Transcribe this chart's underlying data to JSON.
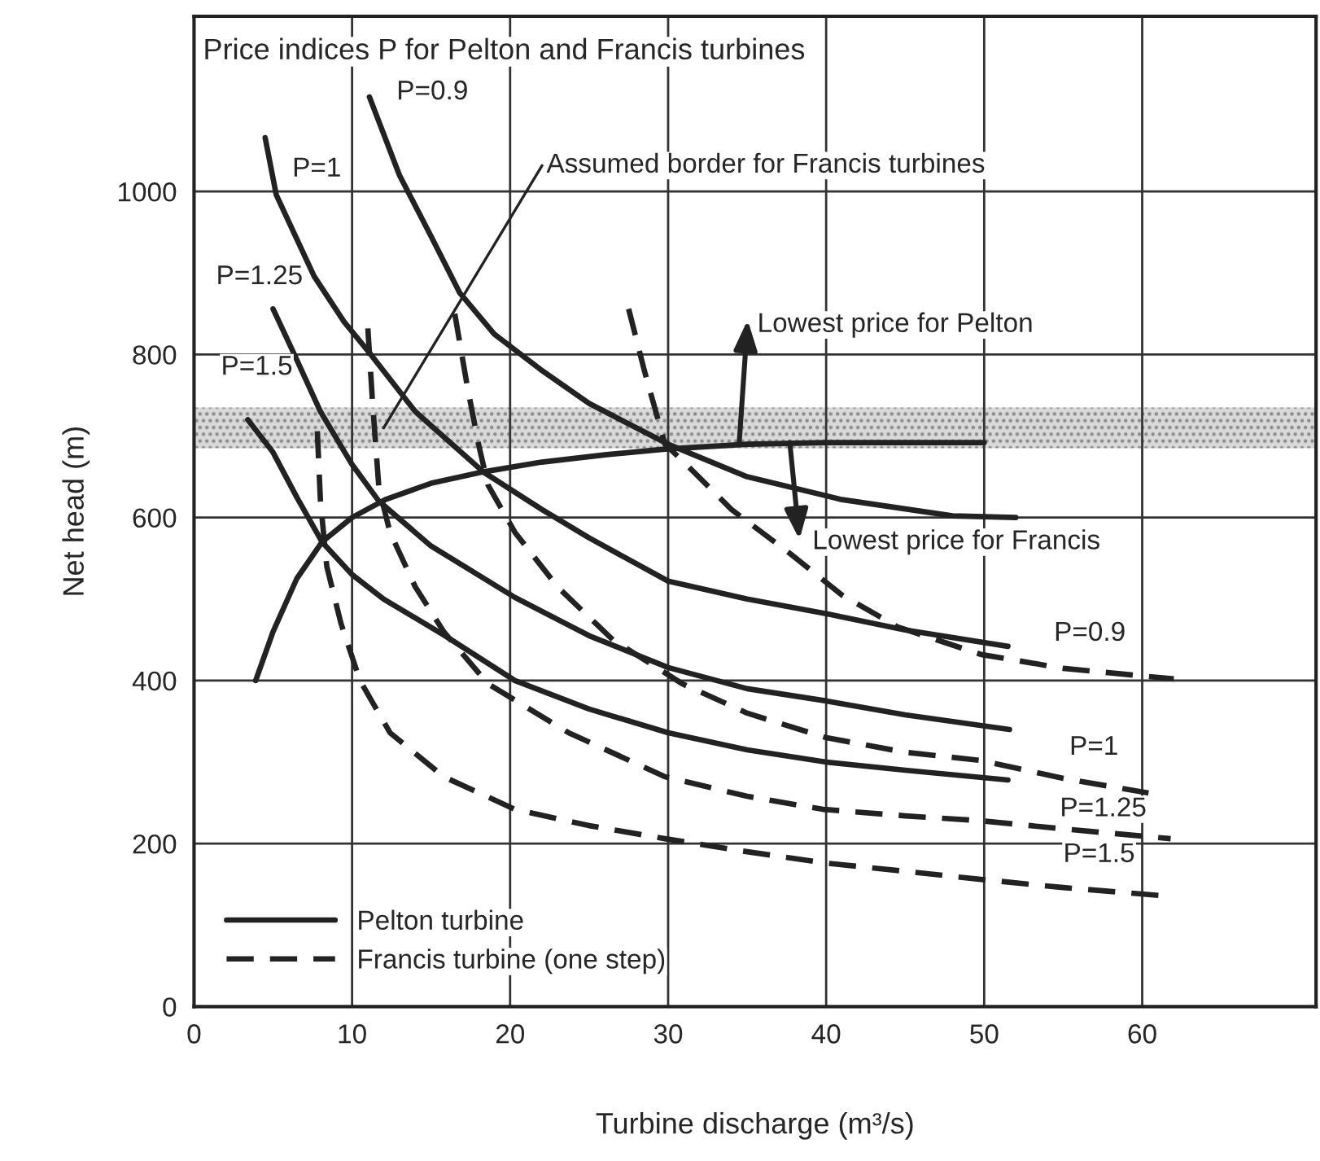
{
  "chart_data": {
    "type": "line",
    "title": "Price indices P for Pelton and Francis turbines",
    "xlabel": "Turbine discharge (m³/s)",
    "ylabel": "Net head (m)",
    "xlim": [
      0,
      71
    ],
    "xticks": [
      0,
      10,
      20,
      30,
      40,
      50,
      60
    ],
    "ylim": [
      0,
      1215
    ],
    "yticks": [
      0,
      200,
      400,
      600,
      800,
      1000
    ],
    "grid": true,
    "legend": "bottom left",
    "marker": "none",
    "series": [
      {
        "name": "Pelton turbine",
        "color": "#222222",
        "line_style": "solid",
        "x": [
          11.1,
          13,
          15,
          16.8,
          19,
          21.9,
          25,
          30,
          35,
          41,
          48,
          52
        ],
        "values": [
          1116,
          1020,
          945,
          876,
          825,
          782,
          740,
          690,
          650,
          622,
          602,
          600
        ]
      },
      {
        "color": "#222222",
        "line_style": "solid",
        "x": [
          4.5,
          5.2,
          7.6,
          9.5,
          11.1,
          14,
          18.3,
          22,
          25,
          30,
          35,
          40,
          45,
          51.5
        ],
        "values": [
          1066,
          996,
          896,
          840,
          802,
          730,
          656,
          610,
          575,
          522,
          500,
          482,
          462,
          442
        ]
      },
      {
        "color": "#222222",
        "line_style": "solid",
        "x": [
          5,
          6.3,
          8,
          10,
          11.7,
          15,
          20.3,
          25,
          30,
          35,
          40,
          45,
          51.6
        ],
        "values": [
          856,
          802,
          730,
          665,
          620,
          565,
          502,
          455,
          416,
          390,
          375,
          358,
          340
        ]
      },
      {
        "color": "#222222",
        "line_style": "solid",
        "x": [
          3.4,
          5,
          6.5,
          8.1,
          10,
          12,
          15.8,
          20.3,
          25,
          30,
          35,
          40,
          45,
          51.5
        ],
        "values": [
          720,
          680,
          625,
          570,
          530,
          500,
          456,
          400,
          365,
          336,
          315,
          300,
          290,
          278
        ]
      },
      {
        "name": "Francis turbine (one step)",
        "color": "#222222",
        "line_style": "dashed",
        "x": [
          27.5,
          28.5,
          29.8,
          30.9,
          34,
          37.7,
          41,
          44.5,
          49.8,
          55,
          62
        ],
        "values": [
          856,
          780,
          690,
          670,
          610,
          556,
          505,
          466,
          432,
          415,
          402
        ]
      },
      {
        "color": "#222222",
        "line_style": "dashed",
        "x": [
          16.5,
          17.3,
          18,
          18.6,
          20.3,
          23,
          26.5,
          30.9,
          35,
          40,
          45,
          49.8,
          55,
          60.4
        ],
        "values": [
          850,
          760,
          690,
          640,
          582,
          515,
          450,
          396,
          360,
          330,
          312,
          302,
          280,
          262
        ]
      },
      {
        "color": "#222222",
        "line_style": "dashed",
        "x": [
          11,
          11.3,
          11.7,
          12.4,
          14,
          15.8,
          18.6,
          23.7,
          29.8,
          35,
          39.8,
          45,
          49.8,
          55,
          61.8
        ],
        "values": [
          832,
          740,
          636,
          582,
          515,
          460,
          396,
          336,
          282,
          258,
          242,
          234,
          228,
          218,
          206
        ]
      },
      {
        "color": "#222222",
        "line_style": "dashed",
        "x": [
          7.8,
          8,
          8.4,
          9.3,
          10.5,
          12.4,
          15.8,
          20.3,
          25,
          29.8,
          35,
          40,
          45,
          49.8,
          55,
          61.3
        ],
        "values": [
          706,
          620,
          540,
          470,
          400,
          336,
          282,
          242,
          222,
          206,
          190,
          176,
          166,
          156,
          146,
          136
        ]
      },
      {
        "color": "#222222",
        "line_style": "solid",
        "x": [
          3.9,
          5,
          6.5,
          8.1,
          10,
          12.1,
          15,
          18.3,
          22,
          26,
          29.8,
          35,
          40,
          50
        ],
        "values": [
          400,
          460,
          525,
          570,
          600,
          622,
          642,
          656,
          668,
          677,
          684,
          690,
          692,
          692
        ]
      }
    ],
    "bands": [
      {
        "axis": "y",
        "from": 685,
        "to": 735,
        "color": "#d9d9d9"
      }
    ],
    "annotations": [
      {
        "text": "P=0.9",
        "x": 11.1,
        "y": 1116
      },
      {
        "text": "P=1",
        "x": 4.5,
        "y": 1066
      },
      {
        "text": "P=1.25",
        "x": 5,
        "y": 856
      },
      {
        "text": "P=1.5",
        "x": 3.4,
        "y": 720
      },
      {
        "text": "Assumed border for Francis turbines",
        "x": 12,
        "y": 710
      },
      {
        "text": "Lowest price for Pelton",
        "x": 34.5,
        "y": 692
      },
      {
        "text": "Lowest price for Francis",
        "x": 37.7,
        "y": 692
      },
      {
        "text": "P=0.9",
        "x": 62,
        "y": 402
      },
      {
        "text": "P=1",
        "x": 60.4,
        "y": 262
      },
      {
        "text": "P=1.25",
        "x": 61.8,
        "y": 206
      },
      {
        "text": "P=1.5",
        "x": 61.3,
        "y": 136
      }
    ]
  }
}
